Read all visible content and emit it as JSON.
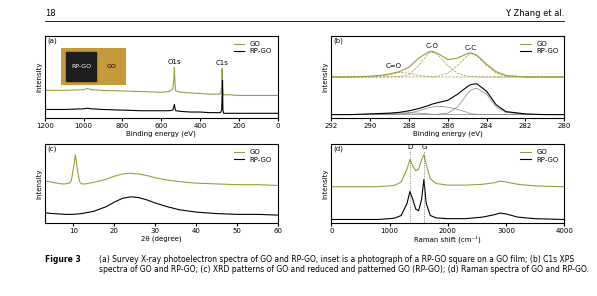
{
  "page": {
    "number": "18",
    "running_head": "Y. Zhang et al."
  },
  "caption": {
    "label": "Figure 3",
    "text": "(a) Survey X-ray photoelectron spectra of GO and RP-GO, inset is a photograph of a RP-GO square on a GO film; (b) C1s XPS spectra of GO and RP-GO; (c) XRD patterns of GO and reduced and patterned GO (RP-GO); (d) Raman spectra of GO and RP-GO."
  },
  "chart_data": [
    {
      "type": "line",
      "panel": "(a)",
      "xlabel": "Binding energy (eV)",
      "ylabel": "Intensity",
      "xlim": [
        1200,
        0
      ],
      "xticks": [
        1200,
        1000,
        800,
        600,
        400,
        200,
        0
      ],
      "ylim": [
        0,
        130
      ],
      "yticks": [],
      "tick_labels": "x",
      "legend": "upper right",
      "series": [
        {
          "name": "GO",
          "color": "#9c9c3c",
          "x": [
            1200,
            1100,
            1000,
            980,
            960,
            900,
            800,
            700,
            600,
            560,
            540,
            535,
            532,
            529,
            525,
            500,
            450,
            400,
            350,
            300,
            292,
            288,
            286,
            284,
            282,
            278,
            250,
            200,
            100,
            0
          ],
          "values": [
            44,
            44,
            45,
            47,
            45,
            44,
            43,
            42,
            41,
            42,
            46,
            60,
            80,
            55,
            43,
            41,
            40,
            39,
            38,
            38,
            40,
            55,
            78,
            60,
            39,
            37,
            37,
            36,
            36,
            36
          ]
        },
        {
          "name": "RP-GO",
          "color": "#000000",
          "x": [
            1200,
            1100,
            1000,
            980,
            960,
            900,
            800,
            700,
            600,
            560,
            540,
            535,
            532,
            529,
            525,
            500,
            450,
            400,
            350,
            300,
            292,
            288,
            286,
            284,
            282,
            278,
            250,
            200,
            100,
            0
          ],
          "values": [
            14,
            14,
            15,
            16,
            15,
            14,
            13,
            12,
            12,
            12,
            13,
            18,
            22,
            16,
            12,
            11,
            10,
            10,
            9,
            9,
            10,
            14,
            35,
            60,
            14,
            8,
            8,
            8,
            8,
            8
          ]
        }
      ],
      "annotations": [
        {
          "text": "O1s",
          "x": 532,
          "y": 84
        },
        {
          "text": "C1s",
          "x": 285,
          "y": 82
        }
      ],
      "inset": {
        "labels": [
          "RP-GO",
          "GO"
        ]
      }
    },
    {
      "type": "line",
      "panel": "(b)",
      "xlabel": "Binding energy (eV)",
      "ylabel": "Intensity",
      "xlim": [
        292,
        280
      ],
      "xticks": [
        292,
        290,
        288,
        286,
        284,
        282,
        280
      ],
      "ylim": [
        0,
        110
      ],
      "yticks": [],
      "tick_labels": "x",
      "legend": "upper right",
      "series": [
        {
          "name": "GO",
          "color": "#9c9c3c",
          "x": [
            292,
            291,
            290,
            289.5,
            289,
            288.5,
            288,
            287.5,
            287,
            286.8,
            286.5,
            286,
            285.5,
            285,
            284.8,
            284.5,
            284,
            283.5,
            283,
            282,
            281,
            280
          ],
          "values": [
            55,
            55,
            56,
            57,
            59,
            62,
            68,
            80,
            88,
            89,
            86,
            78,
            80,
            86,
            87,
            84,
            72,
            62,
            57,
            55,
            55,
            55
          ],
          "components": {
            "color": "#9c9c3c",
            "line_style": "dashed",
            "values": [
              [
                55,
                55,
                55,
                56,
                58,
                61,
                60,
                57,
                55.5,
                55,
                55,
                55,
                55,
                55,
                55,
                55,
                55,
                55,
                55,
                55,
                55,
                55
              ],
              [
                55,
                55,
                55,
                55,
                55,
                55.5,
                58,
                70,
                86,
                88,
                84,
                70,
                60,
                56,
                55.5,
                55,
                55,
                55,
                55,
                55,
                55,
                55
              ],
              [
                55,
                55,
                55,
                55,
                55,
                55,
                55,
                55,
                55,
                55,
                56,
                60,
                70,
                83,
                86,
                83,
                70,
                60,
                56,
                55,
                55,
                55
              ]
            ]
          }
        },
        {
          "name": "RP-GO",
          "color": "#000000",
          "x": [
            292,
            291,
            290,
            289.5,
            289,
            288.5,
            288,
            287.5,
            287,
            286.8,
            286.5,
            286,
            285.5,
            285,
            284.8,
            284.5,
            284,
            283.5,
            283,
            282,
            281,
            280
          ],
          "values": [
            5,
            5,
            6,
            6.5,
            7,
            8,
            10,
            13,
            17,
            19,
            21,
            24,
            32,
            42,
            45,
            46,
            36,
            18,
            9,
            6,
            5,
            5
          ],
          "components": {
            "color": "#808080",
            "line_style": "solid",
            "values": [
              [
                5,
                5,
                5.5,
                6,
                6.5,
                7,
                7.5,
                7,
                6,
                5.5,
                5,
                5,
                5,
                5,
                5,
                5,
                5,
                5,
                5,
                5,
                5,
                5
              ],
              [
                5,
                5,
                5,
                5,
                5,
                5.5,
                7,
                10,
                14,
                15,
                16,
                15,
                12,
                8,
                6,
                5.5,
                5,
                5,
                5,
                5,
                5,
                5
              ],
              [
                5,
                5,
                5,
                5,
                5,
                5,
                5,
                5,
                5,
                5,
                5.5,
                7,
                15,
                32,
                38,
                40,
                32,
                15,
                8,
                5.5,
                5,
                5
              ]
            ]
          }
        }
      ],
      "annotations": [
        {
          "text": "C=O",
          "x": 288.8,
          "y": 65
        },
        {
          "text": "C-O",
          "x": 286.8,
          "y": 92
        },
        {
          "text": "C-C",
          "x": 284.8,
          "y": 90
        }
      ]
    },
    {
      "type": "line",
      "panel": "(c)",
      "xlabel": "2θ (degree)",
      "ylabel": "Intensity",
      "xlim": [
        3,
        60
      ],
      "xticks": [
        10,
        20,
        30,
        40,
        50,
        60
      ],
      "ylim": [
        0,
        105
      ],
      "yticks": [],
      "tick_labels": "x",
      "legend": "upper right",
      "series": [
        {
          "name": "GO",
          "color": "#9c9c3c",
          "x": [
            3,
            5,
            7,
            8,
            9,
            9.5,
            10,
            10.5,
            11,
            11.5,
            12,
            13,
            15,
            18,
            20,
            22,
            24,
            26,
            28,
            30,
            33,
            36,
            40,
            45,
            50,
            55,
            60
          ],
          "values": [
            56,
            54,
            52,
            52,
            53,
            56,
            72,
            90,
            70,
            55,
            52,
            52,
            54,
            58,
            62,
            65,
            66,
            65,
            63,
            60,
            57,
            55,
            53,
            52,
            51,
            51,
            50
          ]
        },
        {
          "name": "RP-GO",
          "color": "#000000",
          "x": [
            3,
            5,
            8,
            10,
            12,
            15,
            18,
            20,
            22,
            24,
            26,
            28,
            30,
            33,
            36,
            40,
            45,
            50,
            55,
            60
          ],
          "values": [
            14,
            13,
            12,
            12,
            13,
            16,
            22,
            28,
            33,
            35,
            34,
            31,
            27,
            22,
            18,
            15,
            13,
            12,
            12,
            11
          ]
        }
      ],
      "annotations": []
    },
    {
      "type": "line",
      "panel": "(d)",
      "xlabel": "Raman shift (cm⁻¹)",
      "ylabel": "Intensity",
      "xlim": [
        0,
        4000
      ],
      "xticks": [
        0,
        1000,
        2000,
        3000,
        4000
      ],
      "ylim": [
        0,
        100
      ],
      "yticks": [],
      "tick_labels": "x",
      "legend": "upper right",
      "series": [
        {
          "name": "GO",
          "color": "#9c9c3c",
          "x": [
            0,
            200,
            500,
            800,
            1000,
            1100,
            1200,
            1300,
            1350,
            1400,
            1450,
            1500,
            1550,
            1590,
            1630,
            1700,
            1800,
            2000,
            2300,
            2600,
            2800,
            2900,
            3000,
            3200,
            3500,
            4000
          ],
          "values": [
            46,
            46,
            46,
            46,
            47,
            48,
            52,
            68,
            80,
            72,
            66,
            68,
            80,
            86,
            74,
            56,
            50,
            48,
            48,
            49,
            51,
            53,
            52,
            49,
            47,
            46
          ]
        },
        {
          "name": "RP-GO",
          "color": "#000000",
          "x": [
            0,
            200,
            500,
            800,
            1000,
            1100,
            1200,
            1300,
            1350,
            1400,
            1450,
            1500,
            1550,
            1590,
            1630,
            1700,
            1800,
            2000,
            2300,
            2600,
            2800,
            2900,
            3000,
            3200,
            3500,
            4000
          ],
          "values": [
            5,
            5,
            5,
            5,
            6,
            7,
            10,
            25,
            40,
            30,
            18,
            16,
            30,
            55,
            25,
            10,
            7,
            6,
            6,
            8,
            11,
            13,
            12,
            8,
            6,
            5
          ]
        }
      ],
      "annotations": [
        {
          "text": "D",
          "x": 1350,
          "y": 92
        },
        {
          "text": "G",
          "x": 1590,
          "y": 92
        }
      ]
    }
  ]
}
